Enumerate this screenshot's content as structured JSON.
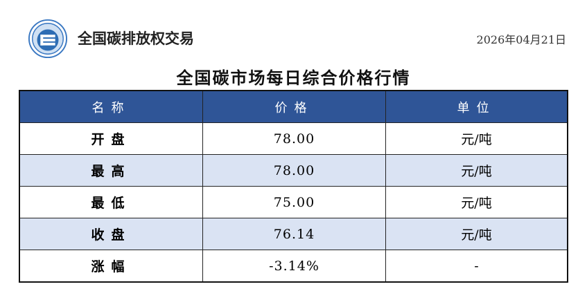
{
  "header": {
    "brand": "全国碳排放权交易",
    "date": "2026年04月21日"
  },
  "title": "全国碳市场每日综合价格行情",
  "table": {
    "columns": [
      "名称",
      "价格",
      "单位"
    ],
    "rows": [
      {
        "name": "开盘",
        "price": "78.00",
        "unit": "元/吨"
      },
      {
        "name": "最高",
        "price": "78.00",
        "unit": "元/吨"
      },
      {
        "name": "最低",
        "price": "75.00",
        "unit": "元/吨"
      },
      {
        "name": "收盘",
        "price": "76.14",
        "unit": "元/吨"
      },
      {
        "name": "涨幅",
        "price": "-3.14%",
        "unit": "-"
      }
    ]
  },
  "colors": {
    "header_bg": "#2f5597",
    "alt_row": "#dae3f3"
  }
}
